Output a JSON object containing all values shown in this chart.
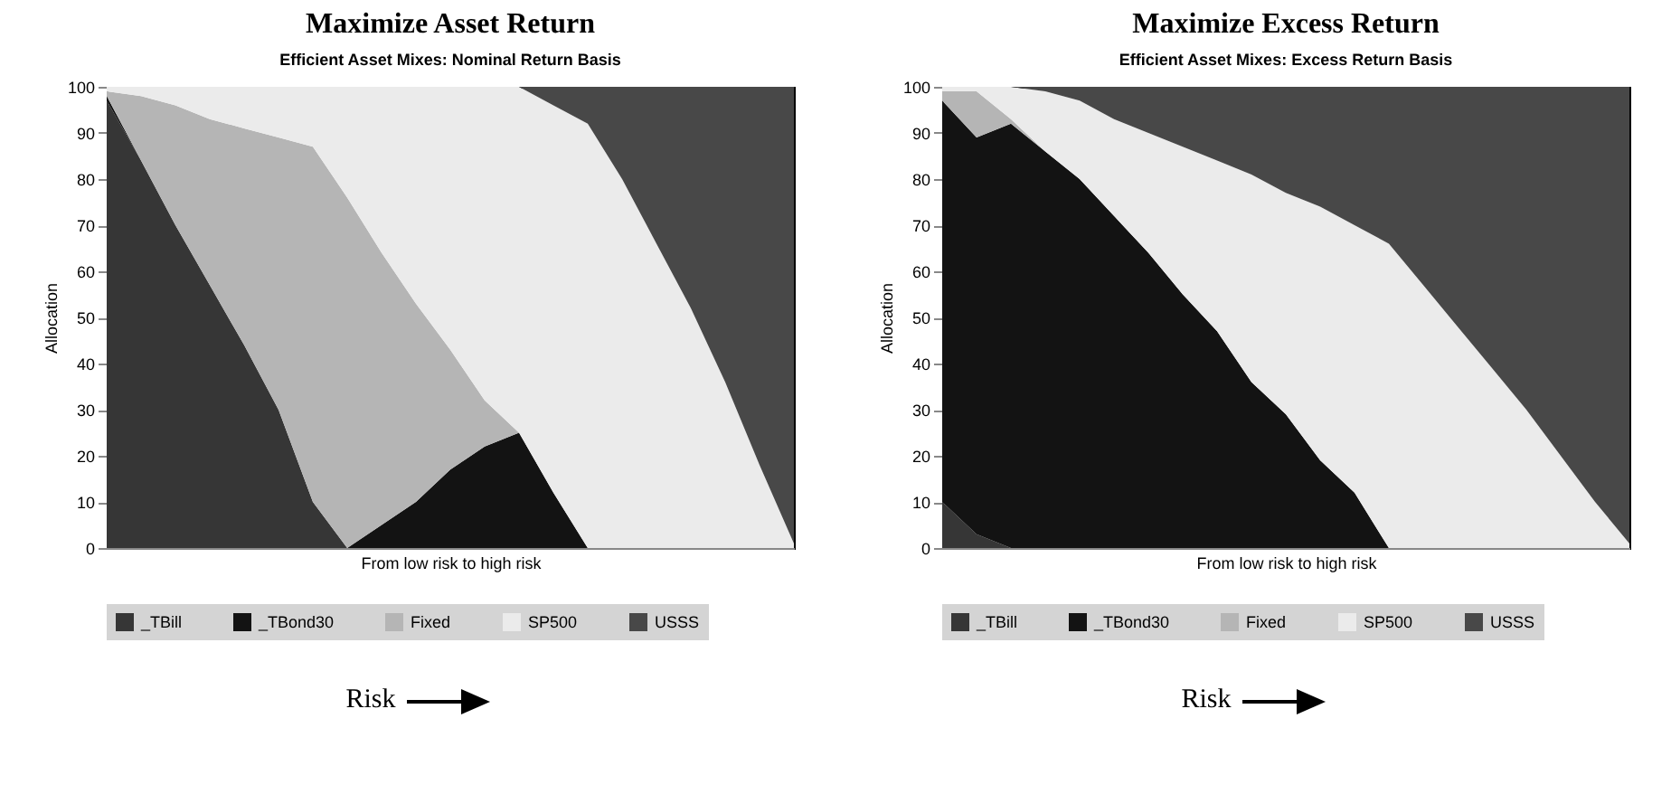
{
  "chart_data": [
    {
      "type": "area",
      "title": "Maximize Asset Return",
      "subtitle": "Efficient Asset Mixes:  Nominal Return Basis",
      "xlabel": "From low risk to high risk",
      "ylabel": "Allocation",
      "stacked": true,
      "legend": "bottom",
      "tick_labels": "y",
      "ylim": [
        0,
        100
      ],
      "yticks": [
        0,
        10,
        20,
        30,
        40,
        50,
        60,
        70,
        80,
        90,
        100
      ],
      "annotations": [
        "Risk"
      ],
      "categories": [
        null,
        null,
        null,
        null,
        null,
        null,
        null,
        null,
        null,
        null,
        null,
        null,
        null,
        null,
        null,
        null,
        null,
        null,
        null,
        null,
        null
      ],
      "series": [
        {
          "name": "_TBill",
          "color": "#363636",
          "values": [
            97,
            84,
            70,
            57,
            44,
            30,
            10,
            0,
            0,
            0,
            0,
            0,
            0,
            0,
            0,
            0,
            0,
            0,
            0,
            0,
            0
          ]
        },
        {
          "name": "_TBond30",
          "color": "#131313",
          "values": [
            1,
            0,
            0,
            0,
            0,
            0,
            0,
            0,
            5,
            10,
            17,
            22,
            25,
            12,
            0,
            0,
            0,
            0,
            0,
            0,
            0
          ]
        },
        {
          "name": "Fixed",
          "color": "#b5b5b5",
          "values": [
            1,
            14,
            26,
            36,
            47,
            59,
            77,
            76,
            59,
            43,
            26,
            10,
            0,
            0,
            0,
            0,
            0,
            0,
            0,
            0,
            0
          ]
        },
        {
          "name": "SP500",
          "color": "#ebebeb",
          "values": [
            1,
            2,
            4,
            7,
            9,
            11,
            13,
            24,
            36,
            47,
            57,
            68,
            75,
            84,
            92,
            80,
            66,
            52,
            36,
            18,
            1
          ]
        },
        {
          "name": "USSS",
          "color": "#484848",
          "values": [
            0,
            0,
            0,
            0,
            0,
            0,
            0,
            0,
            0,
            0,
            0,
            0,
            0,
            4,
            8,
            20,
            34,
            48,
            64,
            82,
            99
          ]
        }
      ]
    },
    {
      "type": "area",
      "title": "Maximize Excess Return",
      "subtitle": "Efficient Asset Mixes:  Excess Return Basis",
      "xlabel": "From low risk to high risk",
      "ylabel": "Allocation",
      "stacked": true,
      "legend": "bottom",
      "tick_labels": "y",
      "ylim": [
        0,
        100
      ],
      "yticks": [
        0,
        10,
        20,
        30,
        40,
        50,
        60,
        70,
        80,
        90,
        100
      ],
      "annotations": [
        "Risk"
      ],
      "categories": [
        null,
        null,
        null,
        null,
        null,
        null,
        null,
        null,
        null,
        null,
        null,
        null,
        null,
        null,
        null,
        null,
        null,
        null,
        null,
        null,
        null
      ],
      "series": [
        {
          "name": "_TBill",
          "color": "#363636",
          "values": [
            10,
            3,
            0,
            0,
            0,
            0,
            0,
            0,
            0,
            0,
            0,
            0,
            0,
            0,
            0,
            0,
            0,
            0,
            0,
            0,
            0
          ]
        },
        {
          "name": "_TBond30",
          "color": "#131313",
          "values": [
            87,
            86,
            92,
            86,
            80,
            72,
            64,
            55,
            47,
            36,
            29,
            19,
            12,
            0,
            0,
            0,
            0,
            0,
            0,
            0,
            0
          ]
        },
        {
          "name": "Fixed",
          "color": "#b5b5b5",
          "values": [
            2,
            10,
            1,
            0,
            0,
            0,
            0,
            0,
            0,
            0,
            0,
            0,
            0,
            0,
            0,
            0,
            0,
            0,
            0,
            0,
            0
          ]
        },
        {
          "name": "SP500",
          "color": "#ebebeb",
          "values": [
            1,
            1,
            7,
            13,
            17,
            21,
            26,
            32,
            37,
            45,
            48,
            55,
            58,
            66,
            57,
            48,
            39,
            30,
            20,
            10,
            1
          ]
        },
        {
          "name": "USSS",
          "color": "#484848",
          "values": [
            0,
            0,
            0,
            1,
            3,
            7,
            10,
            13,
            16,
            19,
            23,
            26,
            30,
            34,
            43,
            52,
            61,
            70,
            80,
            90,
            99
          ]
        }
      ]
    }
  ]
}
